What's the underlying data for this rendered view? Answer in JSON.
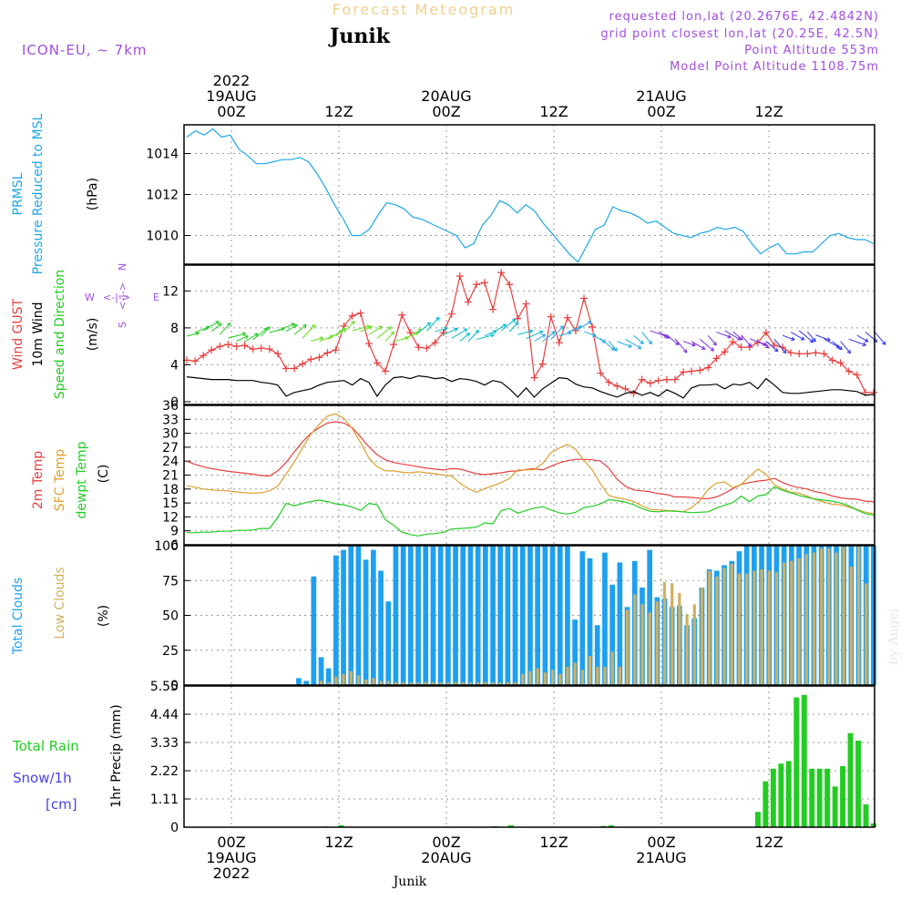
{
  "header": {
    "forecast_title": "Forecast Meteogram",
    "location": "Junik",
    "model": "ICON-EU, ~ 7km",
    "requested": "requested lon,lat (20.2676E, 42.4842N)",
    "grid_point": "grid point closest lon,lat (20.25E, 42.5N)",
    "point_altitude": "Point Altitude 553m",
    "model_altitude": "Model Point Altitude 1108.75m"
  },
  "time_axis": {
    "top": [
      {
        "t": 0,
        "lines": [
          "2022",
          "19AUG",
          "00Z"
        ]
      },
      {
        "t": 12,
        "lines": [
          "12Z"
        ]
      },
      {
        "t": 24,
        "lines": [
          "20AUG",
          "00Z"
        ]
      },
      {
        "t": 36,
        "lines": [
          "12Z"
        ]
      },
      {
        "t": 48,
        "lines": [
          "21AUG",
          "00Z"
        ]
      },
      {
        "t": 60,
        "lines": [
          "12Z"
        ]
      }
    ],
    "bottom": [
      {
        "t": 0,
        "lines": [
          "00Z",
          "19AUG",
          "2022"
        ]
      },
      {
        "t": 12,
        "lines": [
          "12Z"
        ]
      },
      {
        "t": 24,
        "lines": [
          "00Z",
          "20AUG"
        ]
      },
      {
        "t": 36,
        "lines": [
          "12Z"
        ]
      },
      {
        "t": 48,
        "lines": [
          "00Z",
          "21AUG"
        ]
      },
      {
        "t": 60,
        "lines": [
          "12Z"
        ]
      }
    ],
    "footer_location": "Junik",
    "credit": "by Angel"
  },
  "colors": {
    "prmsl": "#1ea8e8",
    "gust": "#e84040",
    "wind": "#000000",
    "dir": "#22cc22",
    "temp": "#e84040",
    "sfc": "#e0a030",
    "dew": "#22cc22",
    "total_cloud": "#1ea0f0",
    "low_cloud": "#d0b060",
    "rain": "#22cc22",
    "snow": "#4444ee",
    "compass": "#a24ee0"
  },
  "chart_data": [
    {
      "type": "line",
      "panel": "pressure",
      "ylabel_lines": [
        "PRMSL",
        "Pressure Reduced to MSL"
      ],
      "unit": "(hPa)",
      "yticks": [
        1010,
        1012,
        1014
      ],
      "ylim": [
        1008.6,
        1015.4
      ],
      "series": [
        {
          "name": "PRMSL",
          "values": [
            1014.8,
            1015.1,
            1014.9,
            1015.2,
            1014.8,
            1014.9,
            1014.2,
            1013.9,
            1013.5,
            1013.5,
            1013.6,
            1013.7,
            1013.7,
            1013.8,
            1013.6,
            1013.0,
            1012.3,
            1011.5,
            1010.8,
            1010.0,
            1010.0,
            1010.3,
            1011.0,
            1011.6,
            1011.5,
            1011.3,
            1010.9,
            1010.8,
            1010.6,
            1010.4,
            1010.2,
            1010.0,
            1009.4,
            1009.6,
            1010.5,
            1011.0,
            1011.7,
            1011.5,
            1011.1,
            1011.5,
            1011.2,
            1010.6,
            1010.1,
            1009.6,
            1009.1,
            1008.7,
            1009.5,
            1010.3,
            1010.5,
            1011.4,
            1011.2,
            1011.1,
            1010.9,
            1010.6,
            1010.7,
            1010.4,
            1010.1,
            1010.0,
            1009.9,
            1010.1,
            1010.2,
            1010.4,
            1010.3,
            1010.4,
            1010.2,
            1009.6,
            1009.1,
            1009.4,
            1009.6,
            1009.1,
            1009.1,
            1009.2,
            1009.2,
            1009.6,
            1010.0,
            1010.1,
            1009.9,
            1009.8,
            1009.8,
            1009.6
          ]
        }
      ]
    },
    {
      "type": "line",
      "panel": "wind",
      "ylabel_lines": [
        "Wind GUST",
        "10m Wind",
        "Speed and Direction"
      ],
      "unit": "(m/s)",
      "compass": {
        "n": "N",
        "s": "S",
        "e": "E",
        "w": "W",
        "cross": "<-|->"
      },
      "yticks": [
        0,
        4,
        8,
        12
      ],
      "ylim": [
        -0.3,
        14.8
      ],
      "series": [
        {
          "name": "Wind GUST",
          "values": [
            4.5,
            4.4,
            5.0,
            5.6,
            6.0,
            6.2,
            6.0,
            6.1,
            5.7,
            5.8,
            5.7,
            5.2,
            3.6,
            3.6,
            4.1,
            4.6,
            4.8,
            5.3,
            5.6,
            8.2,
            9.3,
            9.6,
            6.3,
            4.2,
            3.3,
            6.2,
            9.4,
            7.5,
            5.9,
            5.8,
            6.4,
            7.5,
            9.5,
            13.6,
            10.8,
            12.7,
            12.9,
            10.0,
            14.0,
            12.7,
            9.0,
            10.6,
            2.6,
            4.1,
            9.2,
            6.4,
            9.1,
            7.7,
            11.2,
            8.1,
            3.1,
            2.1,
            1.7,
            1.4,
            0.9,
            2.4,
            2.0,
            2.3,
            2.4,
            2.4,
            3.2,
            3.3,
            3.4,
            3.7,
            4.7,
            5.4,
            6.5,
            5.9,
            5.9,
            6.4,
            7.5,
            6.1,
            5.9,
            5.3,
            5.2,
            5.2,
            5.3,
            5.2,
            4.5,
            4.2,
            3.3,
            2.9,
            1.0,
            1.0
          ]
        },
        {
          "name": "10m Wind",
          "values": [
            2.7,
            2.6,
            2.5,
            2.4,
            2.4,
            2.4,
            2.3,
            2.3,
            2.3,
            2.1,
            2.0,
            1.8,
            0.6,
            1.0,
            1.2,
            1.4,
            1.8,
            2.1,
            2.2,
            2.3,
            1.8,
            2.5,
            2.1,
            0.6,
            1.8,
            2.6,
            2.7,
            2.5,
            2.8,
            2.7,
            2.5,
            2.6,
            2.2,
            2.5,
            2.4,
            2.2,
            1.8,
            2.3,
            2.1,
            1.4,
            0.5,
            1.5,
            0.5,
            1.4,
            2.0,
            2.6,
            2.5,
            1.9,
            1.6,
            1.5,
            1.1,
            0.8,
            0.5,
            0.9,
            1.1,
            0.7,
            1.0,
            0.6,
            1.3,
            0.9,
            0.4,
            1.5,
            1.8,
            1.8,
            1.9,
            1.4,
            1.9,
            1.8,
            2.1,
            1.4,
            2.5,
            1.8,
            1.0,
            0.9,
            0.9,
            1.0,
            1.1,
            1.2,
            1.3,
            1.3,
            1.2,
            1.1,
            0.7,
            0.8
          ]
        }
      ]
    },
    {
      "type": "line",
      "panel": "temperature",
      "ylabel_lines": [
        "2m Temp",
        "SFC Temp",
        "dewpt Temp"
      ],
      "unit": "(C)",
      "yticks": [
        6,
        9,
        12,
        15,
        18,
        21,
        24,
        27,
        30,
        33,
        36
      ],
      "ylim": [
        6,
        36
      ],
      "series": [
        {
          "name": "2m Temp",
          "values": [
            24.0,
            23.3,
            22.8,
            22.4,
            22.1,
            21.8,
            21.6,
            21.4,
            21.2,
            20.9,
            20.8,
            21.9,
            23.7,
            26.0,
            28.2,
            30.0,
            31.2,
            32.2,
            32.5,
            32.2,
            31.2,
            29.2,
            27.1,
            25.4,
            24.3,
            23.7,
            23.4,
            23.1,
            22.8,
            22.5,
            22.3,
            22.1,
            22.4,
            22.3,
            21.8,
            21.3,
            21.1,
            21.3,
            21.5,
            21.8,
            21.9,
            22.2,
            22.4,
            22.1,
            22.9,
            23.6,
            24.1,
            24.4,
            24.4,
            24.3,
            24.0,
            22.5,
            20.1,
            18.6,
            17.8,
            17.6,
            17.4,
            17.0,
            16.8,
            16.3,
            16.3,
            16.2,
            16.0,
            15.9,
            16.3,
            17.1,
            18.1,
            19.0,
            19.4,
            19.7,
            19.9,
            20.3,
            19.4,
            18.7,
            18.3,
            18.0,
            17.4,
            17.1,
            16.5,
            16.1,
            15.9,
            15.8,
            15.4,
            15.3
          ]
        },
        {
          "name": "SFC Temp",
          "values": [
            18.7,
            18.4,
            18.0,
            17.8,
            17.7,
            17.6,
            17.4,
            17.2,
            17.1,
            17.2,
            17.6,
            18.6,
            21.2,
            23.8,
            26.9,
            29.8,
            31.9,
            33.7,
            34.2,
            33.2,
            31.0,
            28.0,
            24.7,
            22.8,
            21.9,
            21.9,
            21.6,
            21.5,
            21.7,
            21.5,
            21.3,
            21.0,
            20.8,
            19.3,
            18.1,
            17.3,
            18.1,
            18.7,
            19.4,
            20.3,
            22.1,
            22.1,
            22.2,
            23.5,
            25.8,
            26.8,
            27.6,
            26.5,
            24.2,
            22.1,
            19.1,
            16.6,
            16.1,
            15.8,
            15.3,
            14.4,
            13.6,
            13.5,
            13.4,
            13.3,
            13.1,
            14.0,
            15.5,
            17.9,
            19.3,
            19.5,
            18.3,
            19.0,
            20.7,
            22.3,
            21.2,
            18.9,
            18.0,
            17.3,
            17.1,
            16.5,
            15.7,
            15.2,
            14.7,
            14.6,
            14.1,
            13.6,
            13.0,
            12.7
          ]
        },
        {
          "name": "dewpt Temp",
          "values": [
            8.6,
            8.6,
            8.7,
            8.7,
            8.9,
            8.9,
            9.1,
            9.1,
            9.2,
            9.5,
            9.5,
            11.9,
            14.9,
            14.4,
            14.9,
            15.3,
            15.6,
            15.3,
            14.8,
            14.6,
            14.1,
            13.4,
            14.9,
            14.6,
            11.4,
            10.2,
            8.7,
            8.2,
            7.9,
            8.3,
            8.4,
            8.7,
            9.4,
            9.5,
            9.6,
            9.8,
            10.7,
            10.5,
            13.4,
            13.8,
            12.8,
            13.4,
            13.9,
            14.2,
            13.5,
            12.9,
            12.6,
            13.0,
            14.0,
            14.3,
            14.8,
            15.7,
            15.5,
            15.2,
            14.6,
            13.8,
            13.2,
            13.1,
            13.3,
            13.2,
            13.1,
            12.9,
            13.0,
            13.1,
            13.9,
            14.5,
            15.1,
            16.5,
            15.3,
            16.5,
            16.8,
            18.5,
            17.7,
            17.2,
            16.6,
            16.2,
            15.8,
            15.6,
            15.4,
            15.0,
            14.4,
            13.5,
            12.7,
            12.4
          ]
        }
      ]
    },
    {
      "type": "bar",
      "panel": "clouds",
      "ylabel_lines": [
        "Total Clouds",
        "Low Clouds"
      ],
      "unit": "(%)",
      "yticks": [
        0,
        25,
        50,
        75,
        100
      ],
      "ylim": [
        0,
        100
      ],
      "series": [
        {
          "name": "Total Clouds",
          "values": [
            0,
            0,
            0,
            0,
            0,
            0,
            0,
            0,
            0,
            0,
            0,
            0,
            0,
            0,
            0,
            5,
            3,
            78,
            20,
            12,
            93,
            97,
            100,
            100,
            90,
            97,
            82,
            60,
            100,
            100,
            100,
            100,
            100,
            100,
            100,
            100,
            100,
            100,
            100,
            100,
            100,
            100,
            100,
            100,
            100,
            100,
            100,
            100,
            100,
            100,
            100,
            100,
            47,
            96,
            91,
            43,
            95,
            72,
            88,
            56,
            89,
            70,
            97,
            63,
            62,
            56,
            57,
            43,
            48,
            70,
            83,
            82,
            86,
            89,
            96,
            100,
            100,
            100,
            100,
            100,
            100,
            100,
            100,
            100,
            100,
            100,
            100,
            100,
            100,
            100,
            100,
            100,
            100
          ]
        },
        {
          "name": "Low Clouds",
          "values": [
            0,
            0,
            0,
            0,
            0,
            0,
            0,
            0,
            0,
            0,
            0,
            0,
            0,
            0,
            0,
            0,
            0,
            0,
            3,
            2,
            6,
            8,
            10,
            7,
            4,
            5,
            3,
            3,
            2,
            2,
            2,
            2,
            2,
            2,
            2,
            2,
            2,
            2,
            2,
            2,
            2,
            2,
            2,
            2,
            2,
            8,
            10,
            12,
            9,
            11,
            8,
            13,
            16,
            11,
            21,
            13,
            13,
            24,
            13,
            54,
            65,
            58,
            52,
            60,
            74,
            73,
            66,
            51,
            58,
            70,
            82,
            78,
            84,
            87,
            80,
            80,
            82,
            83,
            82,
            81,
            88,
            89,
            91,
            94,
            95,
            98,
            98,
            95,
            99,
            85,
            100,
            73
          ]
        }
      ]
    },
    {
      "type": "bar",
      "panel": "precip",
      "ylabel": "1hr Precip (mm)",
      "left_labels": [
        "Total  Rain",
        "Snow/1h",
        "[cm]"
      ],
      "yticks": [
        0,
        1.11,
        2.22,
        3.33,
        4.44,
        5.55
      ],
      "ylim": [
        0,
        5.55
      ],
      "series": [
        {
          "name": "Total Rain",
          "values": [
            0,
            0,
            0,
            0,
            0,
            0,
            0,
            0,
            0,
            0,
            0,
            0,
            0,
            0,
            0,
            0,
            0,
            0,
            0.03,
            0,
            0.08,
            0,
            0,
            0,
            0,
            0,
            0,
            0,
            0,
            0,
            0,
            0,
            0,
            0,
            0,
            0,
            0.02,
            0,
            0,
            0,
            0.04,
            0,
            0.08,
            0,
            0,
            0,
            0,
            0,
            0,
            0,
            0,
            0,
            0,
            0,
            0.05,
            0.08,
            0,
            0,
            0,
            0,
            0,
            0,
            0,
            0,
            0,
            0,
            0,
            0,
            0,
            0,
            0,
            0,
            0,
            0,
            0.6,
            1.8,
            2.3,
            2.5,
            2.6,
            5.1,
            5.2,
            2.3,
            2.3,
            2.3,
            1.6,
            2.4,
            3.7,
            3.4,
            0.9,
            0.15
          ]
        }
      ]
    }
  ]
}
